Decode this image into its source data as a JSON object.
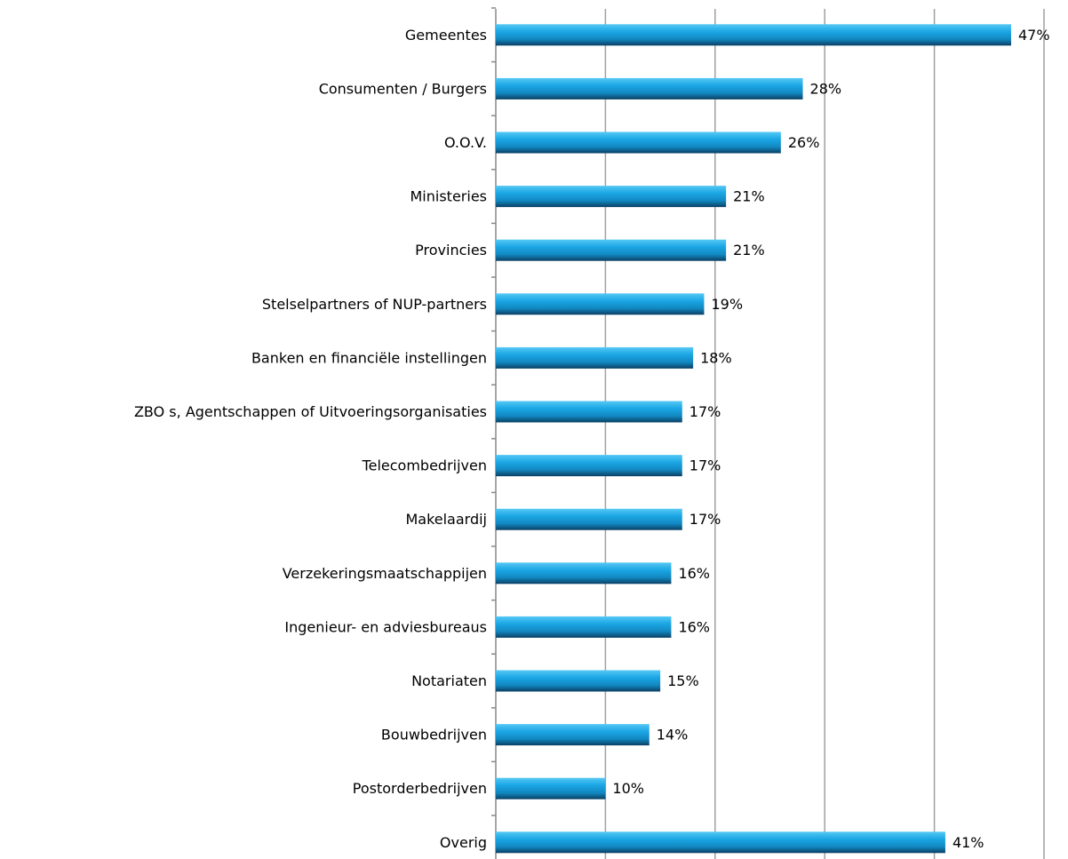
{
  "chart_data": {
    "type": "bar",
    "orientation": "horizontal",
    "categories": [
      "Gemeentes",
      "Consumenten / Burgers",
      "O.O.V.",
      "Ministeries",
      "Provincies",
      "Stelselpartners of NUP-partners",
      "Banken en financiële instellingen",
      "ZBO s, Agentschappen of Uitvoeringsorganisaties",
      "Telecombedrijven",
      "Makelaardij",
      "Verzekeringsmaatschappijen",
      "Ingenieur- en adviesbureaus",
      "Notariaten",
      "Bouwbedrijven",
      "Postorderbedrijven",
      "Overig"
    ],
    "values": [
      47,
      28,
      26,
      21,
      21,
      19,
      18,
      17,
      17,
      17,
      16,
      16,
      15,
      14,
      10,
      41
    ],
    "value_labels": [
      "47%",
      "28%",
      "26%",
      "21%",
      "21%",
      "19%",
      "18%",
      "17%",
      "17%",
      "17%",
      "16%",
      "16%",
      "15%",
      "14%",
      "10%",
      "41%"
    ],
    "color": "#1aa6e4",
    "xlim": [
      0,
      50
    ],
    "xticks": [
      0,
      10,
      20,
      30,
      40,
      50
    ],
    "grid": true
  }
}
